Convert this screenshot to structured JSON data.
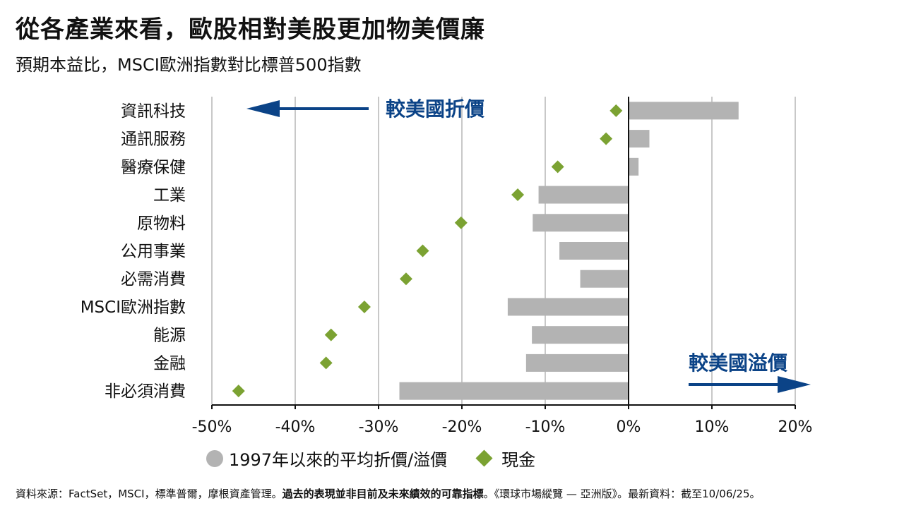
{
  "header": {
    "title": "從各產業來看，歐股相對美股更加物美價廉",
    "subtitle": "預期本益比，MSCI歐洲指數對比標普500指數"
  },
  "annotations": {
    "discount": "較美國折價",
    "premium": "較美國溢價"
  },
  "legend": {
    "avg_label": "1997年以來的平均折價/溢價",
    "current_label": "現金"
  },
  "footer": {
    "part1": "資料來源：FactSet，MSCI，標準普爾，摩根資產管理。",
    "bold": "過去的表現並非目前及未來績效的可靠指標",
    "part2": "。《環球市場縱覽 — 亞洲版》。最新資料：截至10/06/25。"
  },
  "colors": {
    "bar": "#b3b3b3",
    "diamond": "#7ba232",
    "arrow": "#0b4387",
    "grid": "#c8c8c8"
  },
  "chart_data": {
    "type": "bar",
    "orientation": "horizontal",
    "categories": [
      "資訊科技",
      "通訊服務",
      "醫療保健",
      "工業",
      "原物料",
      "公用事業",
      "必需消費",
      "MSCI歐洲指數",
      "能源",
      "金融",
      "非必須消費"
    ],
    "series": [
      {
        "name": "1997年以來的平均折價/溢價",
        "type": "bar",
        "values": [
          13.2,
          2.5,
          1.2,
          -10.8,
          -11.5,
          -8.3,
          -5.8,
          -14.5,
          -11.6,
          -12.3,
          -27.5
        ]
      },
      {
        "name": "現金",
        "type": "scatter",
        "marker": "diamond",
        "values": [
          -1.5,
          -2.7,
          -8.5,
          -13.3,
          -20.1,
          -24.7,
          -26.7,
          -31.7,
          -35.7,
          -36.3,
          -46.8
        ]
      }
    ],
    "xlim": [
      -50,
      20
    ],
    "xticks": [
      -50,
      -40,
      -30,
      -20,
      -10,
      0,
      10,
      20
    ],
    "xtick_labels": [
      "-50%",
      "-40%",
      "-30%",
      "-20%",
      "-10%",
      "0%",
      "10%",
      "20%"
    ],
    "grid": "vertical"
  }
}
